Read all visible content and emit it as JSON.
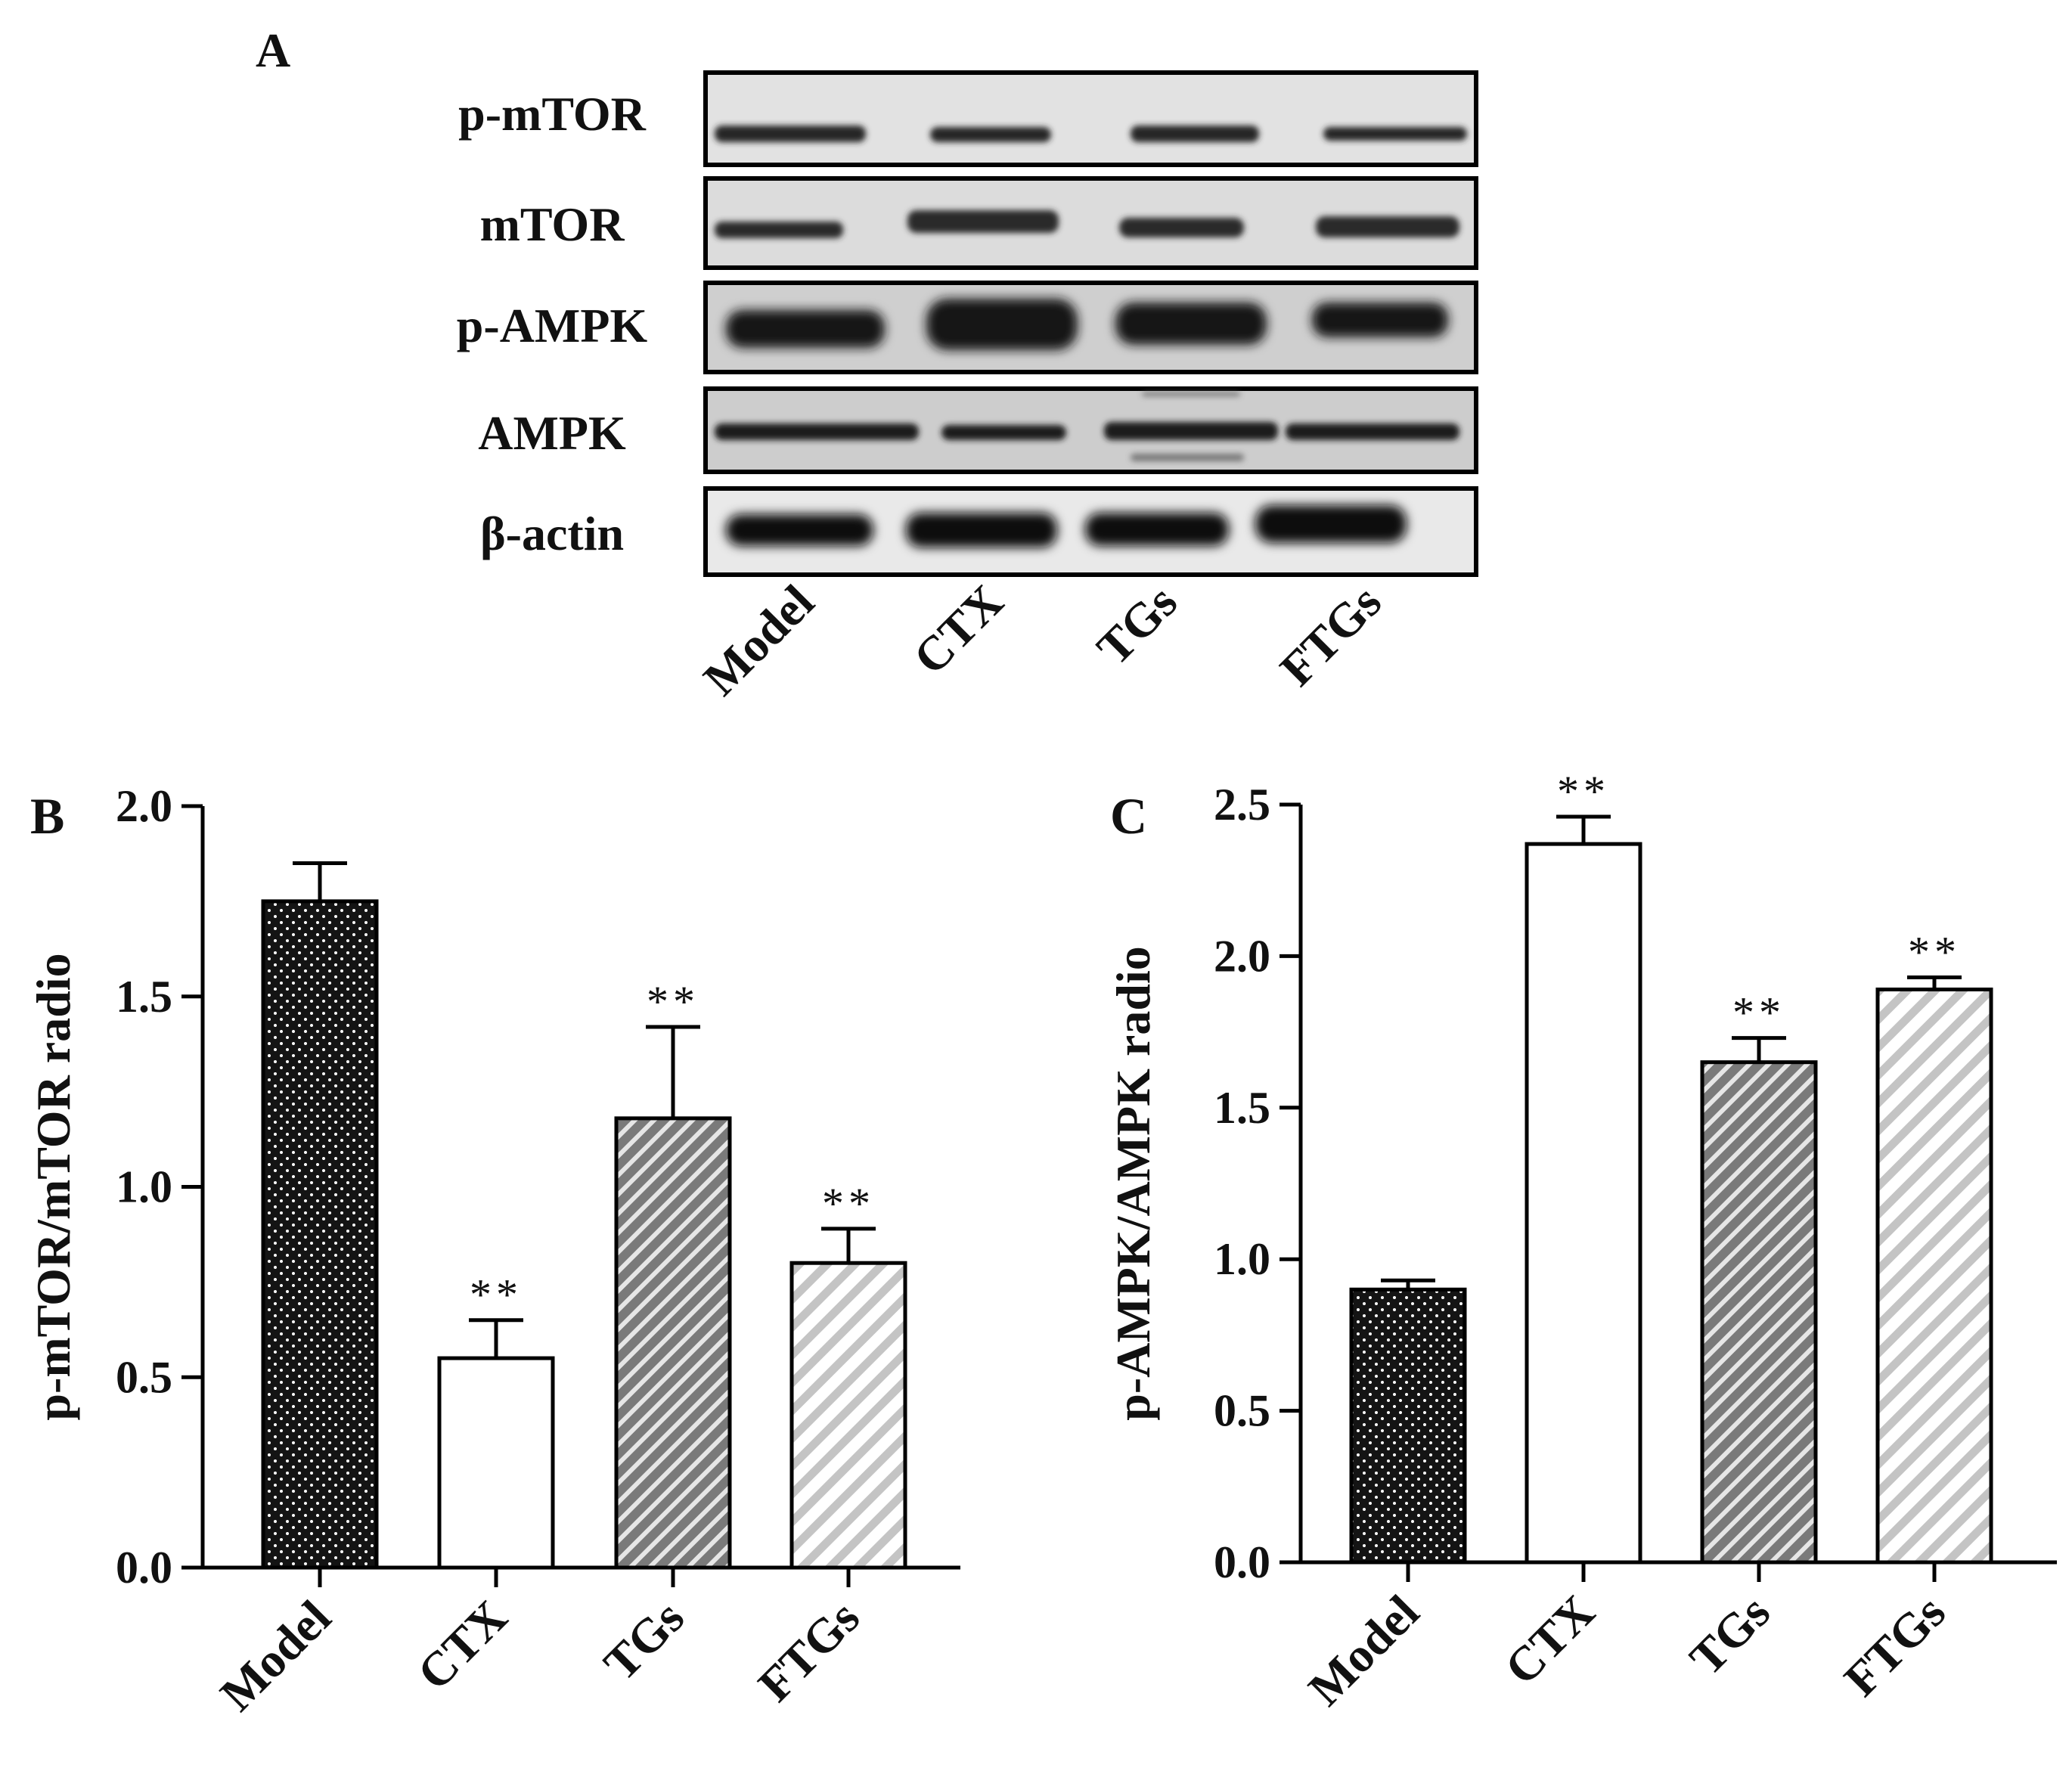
{
  "panels": {
    "A": "A",
    "B": "B",
    "C": "C"
  },
  "blot": {
    "rows": [
      "p-mTOR",
      "mTOR",
      "p-AMPK",
      "AMPK",
      "β-actin"
    ],
    "lanes": [
      "Model",
      "CTX",
      "TGs",
      "FTGs"
    ]
  },
  "chart_data": [
    {
      "panel": "B",
      "type": "bar",
      "categories": [
        "Model",
        "CTX",
        "TGs",
        "FTGs"
      ],
      "values": [
        1.75,
        0.55,
        1.18,
        0.8
      ],
      "errors": [
        0.1,
        0.1,
        0.24,
        0.09
      ],
      "significance": [
        "",
        "**",
        "**",
        "**"
      ],
      "patterns": [
        "dots",
        "open",
        "dark-hatch",
        "light-hatch"
      ],
      "xlabel": "",
      "ylabel": "p-mTOR/mTOR radio",
      "ylim": [
        0,
        2.0
      ],
      "yticks": [
        "0.0",
        "0.5",
        "1.0",
        "1.5",
        "2.0"
      ],
      "grid": false
    },
    {
      "panel": "C",
      "type": "bar",
      "categories": [
        "Model",
        "CTX",
        "TGs",
        "FTGs"
      ],
      "values": [
        0.9,
        2.37,
        1.65,
        1.89
      ],
      "errors": [
        0.03,
        0.09,
        0.08,
        0.04
      ],
      "significance": [
        "",
        "**",
        "**",
        "**"
      ],
      "patterns": [
        "dots",
        "open",
        "dark-hatch",
        "light-hatch"
      ],
      "xlabel": "",
      "ylabel": "p-AMPK/AMPK radio",
      "ylim": [
        0,
        2.5
      ],
      "yticks": [
        "0.0",
        "0.5",
        "1.0",
        "1.5",
        "2.0",
        "2.5"
      ],
      "grid": false
    }
  ]
}
